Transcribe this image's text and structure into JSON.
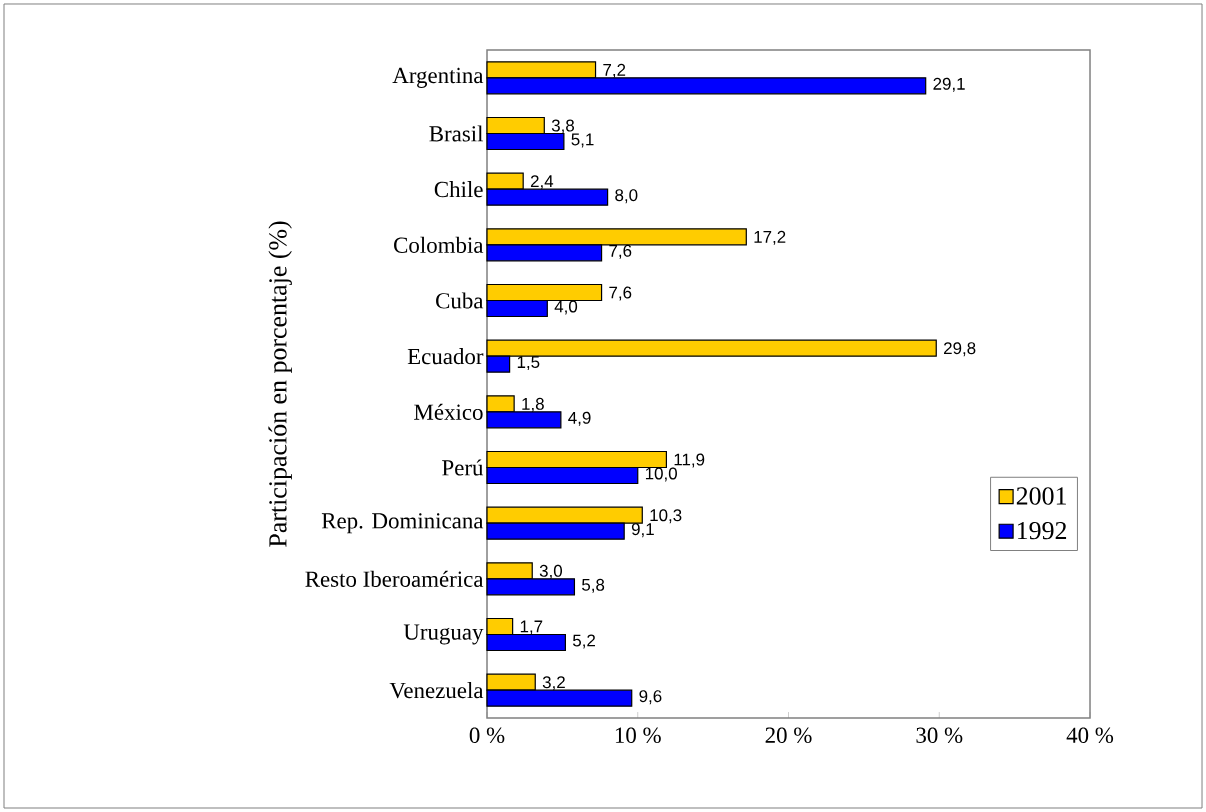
{
  "chart_data": {
    "type": "bar",
    "orientation": "horizontal",
    "ylabel": "Participación en porcentaje (%)",
    "categories": [
      "Argentina",
      "Brasil",
      "Chile",
      "Colombia",
      "Cuba",
      "Ecuador",
      "México",
      "Perú",
      "Rep. Dominicana",
      "Resto Iberoamérica",
      "Uruguay",
      "Venezuela"
    ],
    "series": [
      {
        "name": "2001",
        "color": "#ffcc00",
        "values": [
          7.2,
          3.8,
          2.4,
          17.2,
          7.6,
          29.8,
          1.8,
          11.9,
          10.3,
          3.0,
          1.7,
          3.2
        ],
        "value_labels": [
          "7,2",
          "3,8",
          "2,4",
          "17,2",
          "7,6",
          "29,8",
          "1,8",
          "11,9",
          "10,3",
          "3,0",
          "1,7",
          "3,2"
        ]
      },
      {
        "name": "1992",
        "color": "#0000ff",
        "values": [
          29.1,
          5.1,
          8.0,
          7.6,
          4.0,
          1.5,
          4.9,
          10.0,
          9.1,
          5.8,
          5.2,
          9.6
        ],
        "value_labels": [
          "29,1",
          "5,1",
          "8,0",
          "7,6",
          "4,0",
          "1,5",
          "4,9",
          "10,0",
          "9,1",
          "5,8",
          "5,2",
          "9,6"
        ]
      }
    ],
    "xlim": [
      0,
      40
    ],
    "xticks": [
      {
        "value": 0,
        "label": "0 %"
      },
      {
        "value": 10,
        "label": "10 %"
      },
      {
        "value": 20,
        "label": "20 %"
      },
      {
        "value": 30,
        "label": "30 %"
      },
      {
        "value": 40,
        "label": "40 %"
      }
    ],
    "grid": false,
    "legend": "right"
  }
}
